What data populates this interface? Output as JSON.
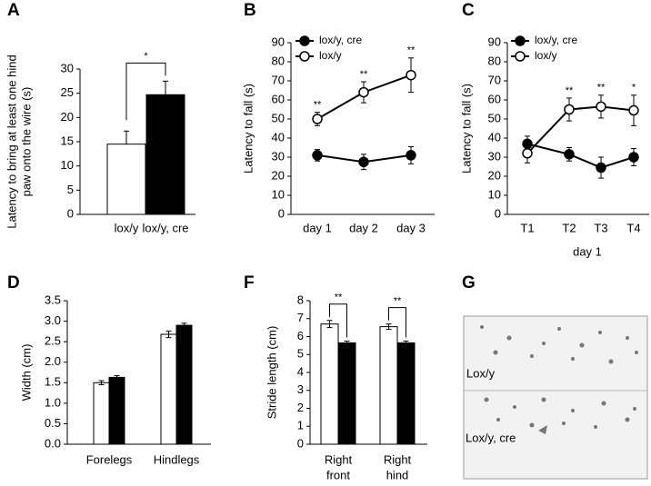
{
  "chart_data": [
    {
      "panel": "A",
      "type": "bar",
      "categories": [
        "lox/y",
        "lox/y, cre"
      ],
      "values": [
        14.5,
        24.7
      ],
      "errors": [
        2.7,
        2.8
      ],
      "colors": [
        "#ffffff",
        "#000000"
      ],
      "ylim": [
        0,
        30
      ],
      "yticks": [
        0,
        5,
        10,
        15,
        20,
        25,
        30
      ],
      "y_label": [
        "Latency to bring at least one hind",
        "paw onto the wire (s)"
      ],
      "annotations": [
        "*"
      ]
    },
    {
      "panel": "B",
      "type": "line",
      "categories": [
        "day 1",
        "day 2",
        "day 3"
      ],
      "legend": "upper left",
      "series": [
        {
          "name": "lox/y, cre",
          "color": "#000000",
          "values": [
            31,
            27.5,
            31
          ],
          "errors": [
            3,
            4,
            4.5
          ]
        },
        {
          "name": "lox/y",
          "color": "#ffffff",
          "values": [
            50,
            64,
            73
          ],
          "errors": [
            3.5,
            5.5,
            9
          ],
          "annotations": [
            "**",
            "**",
            "**"
          ]
        }
      ],
      "ylim": [
        0,
        90
      ],
      "yticks": [
        0,
        10,
        20,
        30,
        40,
        50,
        60,
        70,
        80,
        90
      ],
      "y_label": [
        "Latency to fall (s)"
      ]
    },
    {
      "panel": "C",
      "type": "line",
      "categories": [
        "T1",
        "T2",
        "T3",
        "T4"
      ],
      "x_label": "day 1",
      "legend": "upper left",
      "series": [
        {
          "name": "lox/y, cre",
          "color": "#000000",
          "values": [
            37,
            31.5,
            24.5,
            30
          ],
          "errors": [
            4,
            3.5,
            5.5,
            4.5
          ]
        },
        {
          "name": "lox/y",
          "color": "#ffffff",
          "values": [
            32,
            55,
            56.5,
            54.5
          ],
          "errors": [
            5,
            6,
            6,
            8
          ],
          "annotations": [
            null,
            "**",
            "**",
            "*"
          ]
        }
      ],
      "ylim": [
        0,
        90
      ],
      "yticks": [
        0,
        10,
        20,
        30,
        40,
        50,
        60,
        70,
        80,
        90
      ],
      "y_label": [
        "Latency to fall (s)"
      ]
    },
    {
      "panel": "D",
      "type": "groupedbar",
      "categories": [
        [
          "Forelegs"
        ],
        [
          "Hindlegs"
        ]
      ],
      "series": [
        {
          "color": "#ffffff",
          "values": [
            1.5,
            2.68
          ],
          "errors": [
            0.05,
            0.08
          ]
        },
        {
          "color": "#000000",
          "values": [
            1.63,
            2.9
          ],
          "errors": [
            0.04,
            0.05
          ]
        }
      ],
      "ylim": [
        0,
        3.5
      ],
      "yticks": [
        {
          "value": 0,
          "label": "0.0"
        },
        0.5,
        {
          "value": 1,
          "label": "1.0"
        },
        1.5,
        {
          "value": 2,
          "label": "2.0"
        },
        2.5,
        {
          "value": 3,
          "label": "3.0"
        },
        3.5
      ],
      "y_label": [
        "Width (cm)"
      ]
    },
    {
      "panel": "F",
      "type": "groupedbar",
      "categories": [
        [
          "Right",
          "front"
        ],
        [
          "Right",
          "hind"
        ]
      ],
      "series": [
        {
          "color": "#ffffff",
          "values": [
            6.7,
            6.55
          ],
          "errors": [
            0.2,
            0.15
          ]
        },
        {
          "color": "#000000",
          "values": [
            5.65,
            5.65
          ],
          "errors": [
            0.1,
            0.1
          ]
        }
      ],
      "ylim": [
        0,
        8
      ],
      "yticks": [
        0,
        1,
        2,
        3,
        4,
        5,
        6,
        7,
        8
      ],
      "y_label": [
        "Stride length (cm)"
      ],
      "annotations": [
        "**",
        "**"
      ]
    }
  ],
  "photo": {
    "panel": "G",
    "labels": [
      "Lox/y",
      "Lox/y, cre"
    ]
  }
}
